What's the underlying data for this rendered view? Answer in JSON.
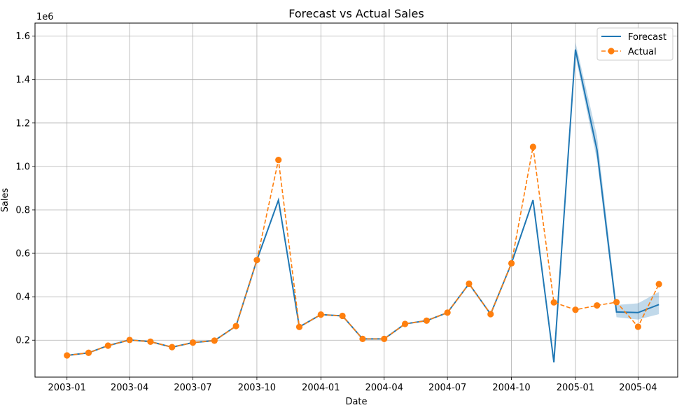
{
  "chart_data": {
    "type": "line",
    "title": "Forecast vs Actual Sales",
    "xlabel": "Date",
    "ylabel": "Sales",
    "y_offset_label": "1e6",
    "x_tick_labels": [
      "2003-01",
      "2003-04",
      "2003-07",
      "2003-10",
      "2004-01",
      "2004-04",
      "2004-07",
      "2004-10",
      "2005-01",
      "2005-04"
    ],
    "x_tick_dates": [
      "2003-01-01",
      "2003-04-01",
      "2003-07-01",
      "2003-10-01",
      "2004-01-01",
      "2004-04-01",
      "2004-07-01",
      "2004-10-01",
      "2005-01-01",
      "2005-04-01"
    ],
    "y_tick_labels": [
      "0.2",
      "0.4",
      "0.6",
      "0.8",
      "1.0",
      "1.2",
      "1.4",
      "1.6"
    ],
    "y_tick_values": [
      0.2,
      0.4,
      0.6,
      0.8,
      1.0,
      1.2,
      1.4,
      1.6
    ],
    "xlim": [
      "2002-11-16",
      "2005-05-28"
    ],
    "ylim": [
      0.03,
      1.66
    ],
    "y_unit_multiplier": 1000000,
    "grid": true,
    "legend_position": "top-right",
    "x": [
      "2003-01-01",
      "2003-02-01",
      "2003-03-01",
      "2003-04-01",
      "2003-05-01",
      "2003-06-01",
      "2003-07-01",
      "2003-08-01",
      "2003-09-01",
      "2003-10-01",
      "2003-11-01",
      "2003-12-01",
      "2004-01-01",
      "2004-02-01",
      "2004-03-01",
      "2004-04-01",
      "2004-05-01",
      "2004-06-01",
      "2004-07-01",
      "2004-08-01",
      "2004-09-01",
      "2004-10-01",
      "2004-11-01",
      "2004-12-01",
      "2005-01-01",
      "2005-02-01",
      "2005-03-01",
      "2005-04-01",
      "2005-05-01"
    ],
    "series": [
      {
        "name": "Forecast",
        "color": "#1f77b4",
        "style": "solid",
        "values": [
          0.13,
          0.142,
          0.175,
          0.201,
          0.193,
          0.168,
          0.189,
          0.198,
          0.265,
          0.569,
          0.845,
          0.261,
          0.318,
          0.312,
          0.206,
          0.206,
          0.275,
          0.29,
          0.327,
          0.46,
          0.32,
          0.554,
          0.845,
          0.098,
          1.538,
          1.075,
          0.33,
          0.327,
          0.364
        ],
        "band_lower": [
          0.13,
          0.142,
          0.175,
          0.201,
          0.193,
          0.168,
          0.189,
          0.198,
          0.265,
          0.569,
          0.845,
          0.261,
          0.318,
          0.312,
          0.206,
          0.206,
          0.275,
          0.29,
          0.327,
          0.46,
          0.32,
          0.554,
          0.845,
          0.098,
          1.51,
          1.03,
          0.306,
          0.295,
          0.32
        ],
        "band_upper": [
          0.13,
          0.142,
          0.175,
          0.201,
          0.193,
          0.168,
          0.189,
          0.198,
          0.265,
          0.569,
          0.845,
          0.261,
          0.318,
          0.312,
          0.206,
          0.206,
          0.275,
          0.29,
          0.327,
          0.46,
          0.32,
          0.554,
          0.845,
          0.098,
          1.572,
          1.14,
          0.362,
          0.37,
          0.422
        ]
      },
      {
        "name": "Actual",
        "color": "#ff7f0e",
        "style": "dashed",
        "marker": "circle",
        "values": [
          0.13,
          0.142,
          0.175,
          0.201,
          0.193,
          0.168,
          0.189,
          0.198,
          0.265,
          0.569,
          1.03,
          0.261,
          0.318,
          0.312,
          0.206,
          0.206,
          0.275,
          0.29,
          0.327,
          0.46,
          0.32,
          0.554,
          1.09,
          0.374,
          0.34,
          0.36,
          0.375,
          0.262,
          0.458
        ]
      }
    ]
  }
}
